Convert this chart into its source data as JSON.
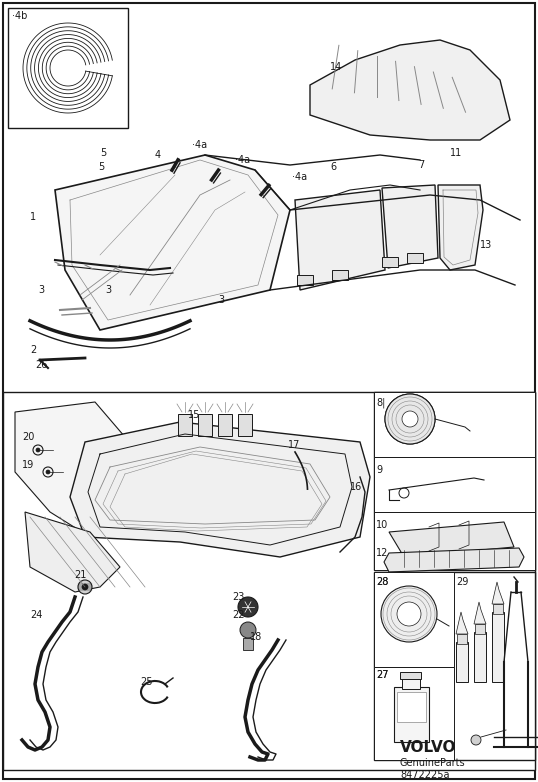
{
  "background_color": "#ffffff",
  "fig_width": 5.38,
  "fig_height": 7.82,
  "dpi": 100,
  "volvo_text": "VOLVO",
  "genuine_parts": "GenuineParts",
  "part_number": "8472225a"
}
